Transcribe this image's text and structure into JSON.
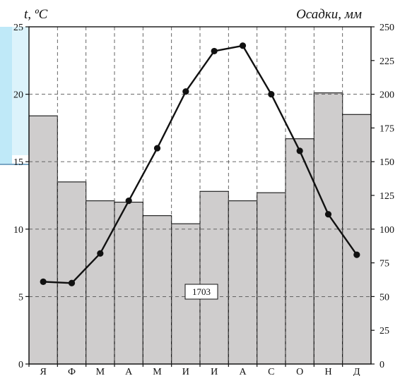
{
  "chart_data": {
    "type": "bar+line",
    "categories": [
      "Я",
      "Ф",
      "М",
      "А",
      "М",
      "И",
      "И",
      "А",
      "С",
      "О",
      "Н",
      "Д"
    ],
    "series": [
      {
        "type": "line",
        "axis": "left",
        "values": [
          6.1,
          6.0,
          8.2,
          12.1,
          16.0,
          20.2,
          23.2,
          23.6,
          20.0,
          15.8,
          11.1,
          8.1
        ]
      },
      {
        "type": "bar",
        "axis": "right",
        "values": [
          184,
          135,
          121,
          120,
          110,
          104,
          128,
          121,
          127,
          167,
          201,
          185
        ]
      }
    ],
    "left_axis": {
      "label": "t, ºC",
      "min": 0,
      "max": 25,
      "ticks": [
        0,
        5,
        10,
        15,
        20,
        25
      ]
    },
    "right_axis": {
      "label": "Осадки, мм",
      "min": 0,
      "max": 250,
      "ticks": [
        0,
        25,
        50,
        75,
        100,
        125,
        150,
        175,
        200,
        225,
        250
      ]
    },
    "annotation": "1703",
    "grid": true
  },
  "colors": {
    "bar_fill": "#cfcdcd",
    "line": "#111111",
    "page_accent": "#bfe9f8"
  }
}
